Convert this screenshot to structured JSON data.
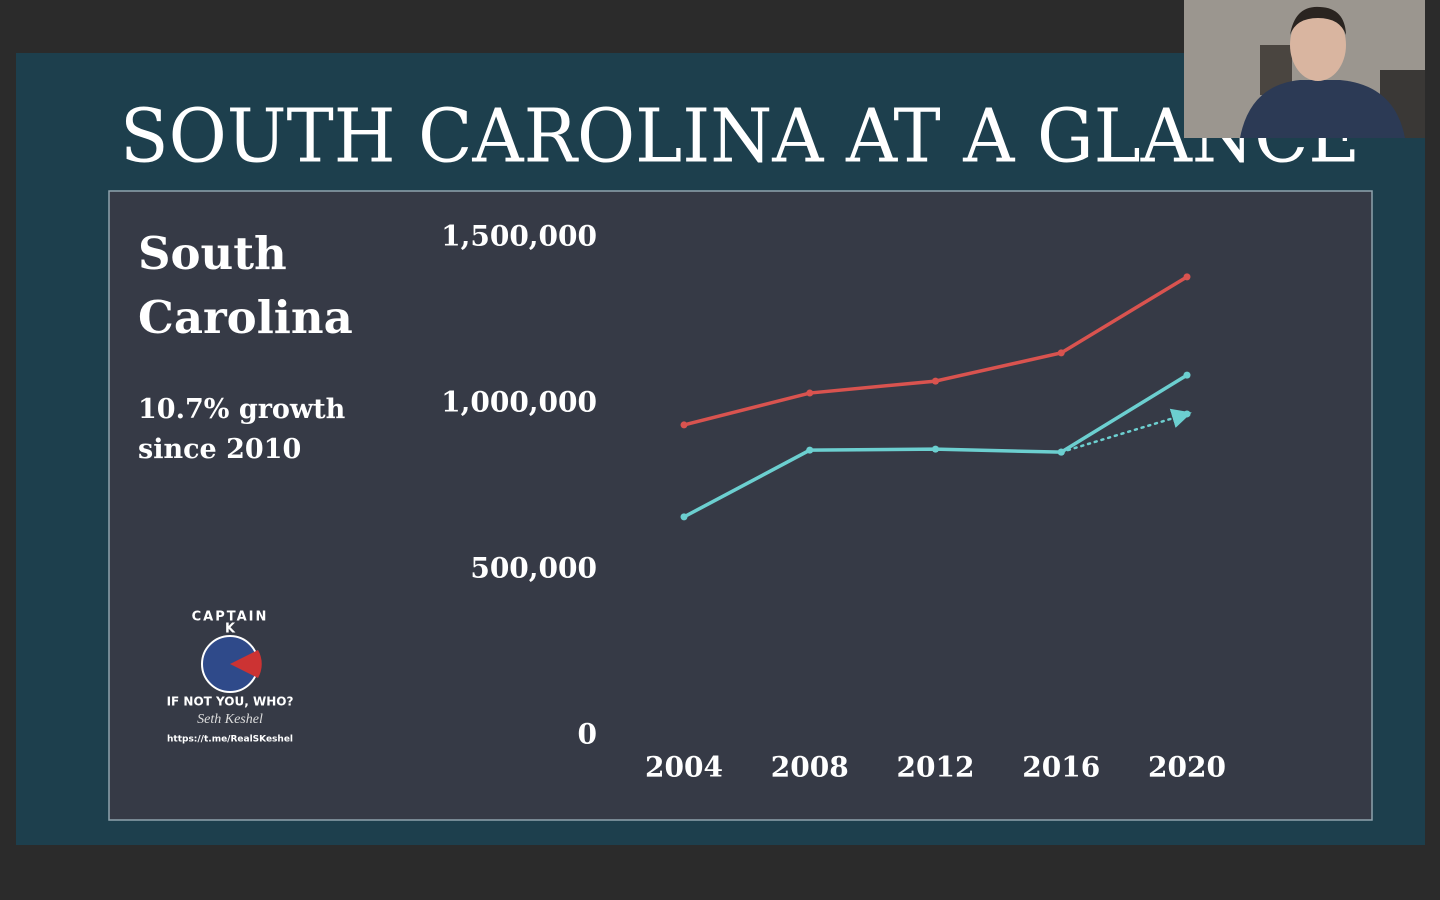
{
  "slide": {
    "title": "SOUTH CAROLINA AT A GLANCE",
    "heading": "South Carolina",
    "note": "10.7% growth since 2010",
    "logo": {
      "top": "CAPTAIN",
      "letter": "K",
      "motto": "IF NOT YOU, WHO?",
      "signature": "Seth Keshel",
      "url": "https://t.me/RealSKeshel"
    }
  },
  "chart_data": {
    "type": "line",
    "categories": [
      "2004",
      "2008",
      "2012",
      "2016",
      "2020"
    ],
    "series": [
      {
        "color": "#d9534f",
        "values": [
          937000,
          1033000,
          1069000,
          1154000,
          1383000
        ]
      },
      {
        "color": "#6ccfd0",
        "values": [
          660000,
          861000,
          864000,
          855000,
          1087000
        ]
      },
      {
        "color": "#6ccfd0",
        "values": [
          null,
          null,
          null,
          855000,
          970000
        ],
        "dotted": true
      }
    ],
    "ylim": [
      0,
      1500000
    ],
    "yticks": [
      {
        "value": 0,
        "label": "0"
      },
      {
        "value": 500000,
        "label": "500,000"
      },
      {
        "value": 1000000,
        "label": "1,000,000"
      },
      {
        "value": 1500000,
        "label": "1,500,000"
      }
    ]
  }
}
